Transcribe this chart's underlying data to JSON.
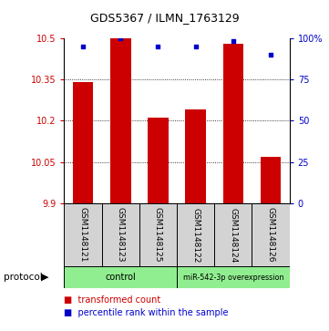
{
  "title": "GDS5367 / ILMN_1763129",
  "samples": [
    "GSM1148121",
    "GSM1148123",
    "GSM1148125",
    "GSM1148122",
    "GSM1148124",
    "GSM1148126"
  ],
  "bar_values": [
    10.34,
    10.5,
    10.21,
    10.24,
    10.48,
    10.07
  ],
  "bar_bottom": 9.9,
  "percentile_values": [
    95,
    100,
    95,
    95,
    98,
    90
  ],
  "ylim_left": [
    9.9,
    10.5
  ],
  "ylim_right": [
    0,
    100
  ],
  "yticks_left": [
    9.9,
    10.05,
    10.2,
    10.35,
    10.5
  ],
  "yticks_right": [
    0,
    25,
    50,
    75,
    100
  ],
  "ytick_labels_left": [
    "9.9",
    "10.05",
    "10.2",
    "10.35",
    "10.5"
  ],
  "ytick_labels_right": [
    "0",
    "25",
    "50",
    "75",
    "100%"
  ],
  "bar_color": "#cc0000",
  "percentile_color": "#0000cc",
  "bar_width": 0.55,
  "protocol_label": "protocol",
  "legend_bar_label": "transformed count",
  "legend_pct_label": "percentile rank within the sample",
  "tick_color_left": "#cc0000",
  "tick_color_right": "#0000cc",
  "ctrl_color": "#90ee90",
  "label_bg": "#d3d3d3"
}
